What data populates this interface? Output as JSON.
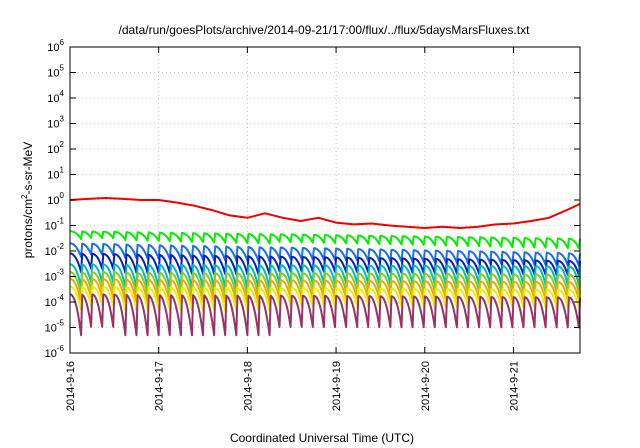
{
  "chart_data": {
    "type": "line",
    "title": "/data/run/goesPlots/archive/2014-09-21/17:00/flux/../flux/5daysMarsFluxes.txt",
    "xlabel": "Coordinated Universal Time (UTC)",
    "ylabel": {
      "base": "protons/cm",
      "sup": "2",
      "rest": "-s-sr-MeV"
    },
    "xlim": [
      "2014-09-16T00:00",
      "2014-09-21T18:00"
    ],
    "xticks": [
      "2014-9-16",
      "2014-9-17",
      "2014-9-18",
      "2014-9-19",
      "2014-9-20",
      "2014-9-21"
    ],
    "ylim": [
      1e-06,
      1000000.0
    ],
    "yscale": "log",
    "yticks": [
      {
        "base": "10",
        "exp": "-6"
      },
      {
        "base": "10",
        "exp": "-5"
      },
      {
        "base": "10",
        "exp": "-4"
      },
      {
        "base": "10",
        "exp": "-3"
      },
      {
        "base": "10",
        "exp": "-2"
      },
      {
        "base": "10",
        "exp": "-1"
      },
      {
        "base": "10",
        "exp": "0"
      },
      {
        "base": "10",
        "exp": "1"
      },
      {
        "base": "10",
        "exp": "2"
      },
      {
        "base": "10",
        "exp": "3"
      },
      {
        "base": "10",
        "exp": "4"
      },
      {
        "base": "10",
        "exp": "5"
      },
      {
        "base": "10",
        "exp": "6"
      }
    ],
    "grid": true,
    "series": [
      {
        "color": "#ee0000",
        "x_day": [
          0.0,
          0.2,
          0.4,
          0.6,
          0.8,
          1.0,
          1.2,
          1.4,
          1.6,
          1.8,
          2.0,
          2.2,
          2.4,
          2.6,
          2.8,
          3.0,
          3.2,
          3.4,
          3.6,
          3.8,
          4.0,
          4.2,
          4.4,
          4.6,
          4.8,
          5.0,
          5.2,
          5.4,
          5.6,
          5.75
        ],
        "y": [
          1.0,
          1.1,
          1.2,
          1.1,
          1.0,
          1.0,
          0.8,
          0.6,
          0.4,
          0.25,
          0.2,
          0.3,
          0.2,
          0.15,
          0.2,
          0.13,
          0.11,
          0.12,
          0.1,
          0.09,
          0.08,
          0.09,
          0.08,
          0.09,
          0.11,
          0.12,
          0.15,
          0.2,
          0.4,
          0.7
        ]
      },
      {
        "color": "#00ee00",
        "peak_line": [
          0.06,
          0.03
        ],
        "trough_line": [
          0.03,
          0.01
        ],
        "cycle_days": 0.125
      },
      {
        "color": "#1c6fe8",
        "peak_line": [
          0.02,
          0.008
        ],
        "trough_line": [
          0.006,
          0.002
        ],
        "cycle_days": 0.125
      },
      {
        "color": "#0022bb",
        "peak_line": [
          0.008,
          0.004
        ],
        "trough_line": [
          0.0015,
          0.0008
        ],
        "cycle_days": 0.125
      },
      {
        "color": "#00bbbb",
        "peak_line": [
          0.003,
          0.0025
        ],
        "trough_line": [
          0.0004,
          0.0003
        ],
        "cycle_days": 0.125
      },
      {
        "color": "#88cc22",
        "peak_line": [
          0.0015,
          0.0012
        ],
        "trough_line": [
          0.0002,
          0.00015
        ],
        "cycle_days": 0.125
      },
      {
        "color": "#eeaa00",
        "peak_line": [
          0.0008,
          0.0006
        ],
        "trough_line": [
          0.0001,
          8e-05
        ],
        "cycle_days": 0.125
      },
      {
        "color": "#eeee00",
        "peak_line": [
          0.0004,
          0.0003
        ],
        "trough_line": [
          5e-05,
          4e-05
        ],
        "cycle_days": 0.125
      },
      {
        "color": "#993366",
        "peak_line": [
          0.0002,
          0.00015
        ],
        "trough_line": [
          5e-06,
          5e-06
        ],
        "cycle_days": 0.125
      }
    ]
  }
}
